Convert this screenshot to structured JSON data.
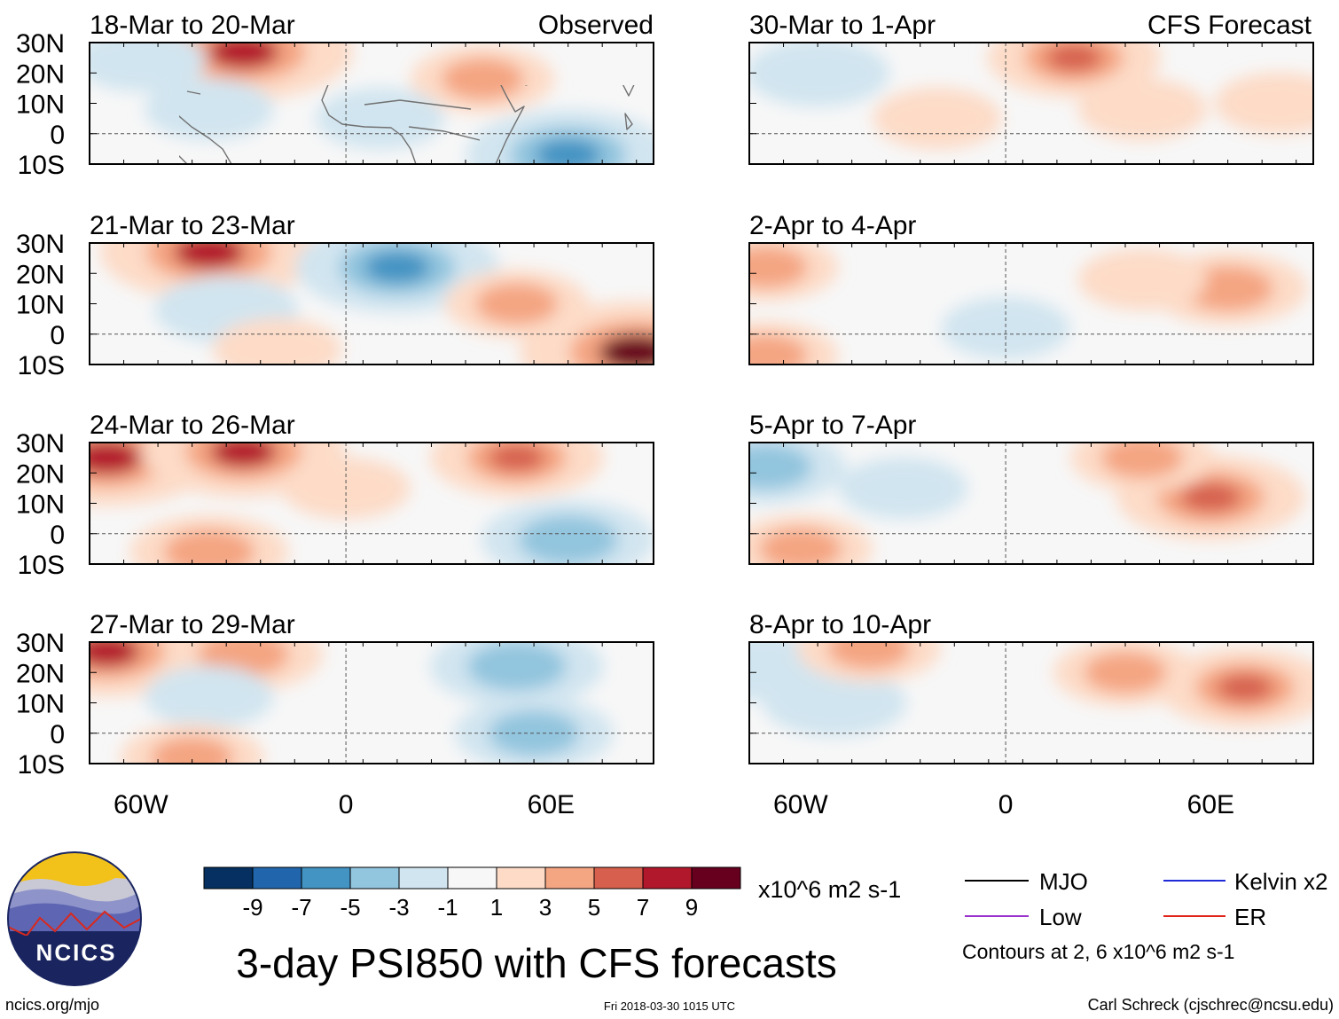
{
  "title": "3-day PSI850 with CFS forecasts",
  "column_titles": {
    "observed": "Observed",
    "forecast": "CFS Forecast"
  },
  "axes": {
    "lat_ticks": [
      "30N",
      "20N",
      "10N",
      "0",
      "10S"
    ],
    "lon_ticks": [
      "60W",
      "0",
      "60E"
    ],
    "lon_range": [
      -75,
      90
    ],
    "lat_range": [
      -10,
      30
    ]
  },
  "panels": [
    {
      "label": "18-Mar to 20-Mar",
      "type": "observed",
      "anomalies": [
        {
          "lon": -30,
          "lat": 27,
          "value": 8
        },
        {
          "lon": 65,
          "lat": -7,
          "value": -7
        },
        {
          "lon": -40,
          "lat": 8,
          "value": -2
        },
        {
          "lon": 40,
          "lat": 18,
          "value": 3
        },
        {
          "lon": -60,
          "lat": 24,
          "value": -2
        },
        {
          "lon": 10,
          "lat": 5,
          "value": -2
        }
      ]
    },
    {
      "label": "21-Mar to 23-Mar",
      "type": "observed",
      "anomalies": [
        {
          "lon": -40,
          "lat": 27,
          "value": 8
        },
        {
          "lon": 15,
          "lat": 22,
          "value": -7
        },
        {
          "lon": 85,
          "lat": -6,
          "value": 9
        },
        {
          "lon": -35,
          "lat": 8,
          "value": -3
        },
        {
          "lon": 50,
          "lat": 10,
          "value": 3
        },
        {
          "lon": -20,
          "lat": -5,
          "value": 2
        }
      ]
    },
    {
      "label": "24-Mar to 26-Mar",
      "type": "observed",
      "anomalies": [
        {
          "lon": -70,
          "lat": 25,
          "value": 8
        },
        {
          "lon": -30,
          "lat": 27,
          "value": 7
        },
        {
          "lon": 65,
          "lat": -2,
          "value": -5
        },
        {
          "lon": 50,
          "lat": 25,
          "value": 5
        },
        {
          "lon": -40,
          "lat": -6,
          "value": 4
        },
        {
          "lon": 0,
          "lat": 15,
          "value": 2
        }
      ]
    },
    {
      "label": "27-Mar to 29-Mar",
      "type": "observed",
      "anomalies": [
        {
          "lon": -70,
          "lat": 27,
          "value": 7
        },
        {
          "lon": -30,
          "lat": 26,
          "value": 4
        },
        {
          "lon": 50,
          "lat": 22,
          "value": -5
        },
        {
          "lon": 55,
          "lat": 0,
          "value": -4
        },
        {
          "lon": -40,
          "lat": 12,
          "value": -2
        },
        {
          "lon": -45,
          "lat": -8,
          "value": 3
        }
      ]
    },
    {
      "label": "30-Mar to 1-Apr",
      "type": "forecast",
      "anomalies": [
        {
          "lon": 20,
          "lat": 25,
          "value": 5
        },
        {
          "lon": -55,
          "lat": 20,
          "value": -3
        },
        {
          "lon": 80,
          "lat": 10,
          "value": 2
        },
        {
          "lon": -20,
          "lat": 5,
          "value": 2
        },
        {
          "lon": 40,
          "lat": 8,
          "value": 2
        }
      ]
    },
    {
      "label": "2-Apr to 4-Apr",
      "type": "forecast",
      "anomalies": [
        {
          "lon": 65,
          "lat": 15,
          "value": 4
        },
        {
          "lon": -70,
          "lat": 22,
          "value": 3
        },
        {
          "lon": 0,
          "lat": 2,
          "value": -2
        },
        {
          "lon": 40,
          "lat": 18,
          "value": 2
        },
        {
          "lon": -70,
          "lat": -7,
          "value": 3
        }
      ]
    },
    {
      "label": "5-Apr to 7-Apr",
      "type": "forecast",
      "anomalies": [
        {
          "lon": 60,
          "lat": 12,
          "value": 6
        },
        {
          "lon": -30,
          "lat": 15,
          "value": -2
        },
        {
          "lon": -70,
          "lat": 22,
          "value": -4
        },
        {
          "lon": 40,
          "lat": 25,
          "value": 3
        },
        {
          "lon": -60,
          "lat": -5,
          "value": 3
        }
      ]
    },
    {
      "label": "8-Apr to 10-Apr",
      "type": "forecast",
      "anomalies": [
        {
          "lon": 70,
          "lat": 15,
          "value": 5
        },
        {
          "lon": -50,
          "lat": 10,
          "value": -3
        },
        {
          "lon": -72,
          "lat": 22,
          "value": -3
        },
        {
          "lon": 35,
          "lat": 20,
          "value": 3
        },
        {
          "lon": -40,
          "lat": 28,
          "value": 3
        }
      ]
    }
  ],
  "colorbar": {
    "unit": "x10^6 m2 s-1",
    "tick_labels": [
      "-9",
      "-7",
      "-5",
      "-3",
      "-1",
      "1",
      "3",
      "5",
      "7",
      "9"
    ],
    "colors": [
      "#053061",
      "#2166ac",
      "#4393c3",
      "#92c5de",
      "#d1e5f0",
      "#f7f7f7",
      "#fddbc7",
      "#f4a582",
      "#d6604d",
      "#b2182b",
      "#67001f"
    ]
  },
  "legend": {
    "items": [
      {
        "label": "MJO",
        "color": "#000000"
      },
      {
        "label": "Kelvin x2",
        "color": "#1f2ad6"
      },
      {
        "label": "Low",
        "color": "#9a32cd"
      },
      {
        "label": "ER",
        "color": "#e0241b"
      }
    ],
    "note": "Contours at 2, 6 x10^6 m2 s-1"
  },
  "logo": {
    "text": "NCICS"
  },
  "footer": {
    "left": "ncics.org/mjo",
    "center": "Fri 2018-03-30 1015 UTC",
    "right": "Carl Schreck (cjschrec@ncsu.edu)"
  },
  "colors": {
    "equator": "#555555",
    "coast": "#707070"
  }
}
